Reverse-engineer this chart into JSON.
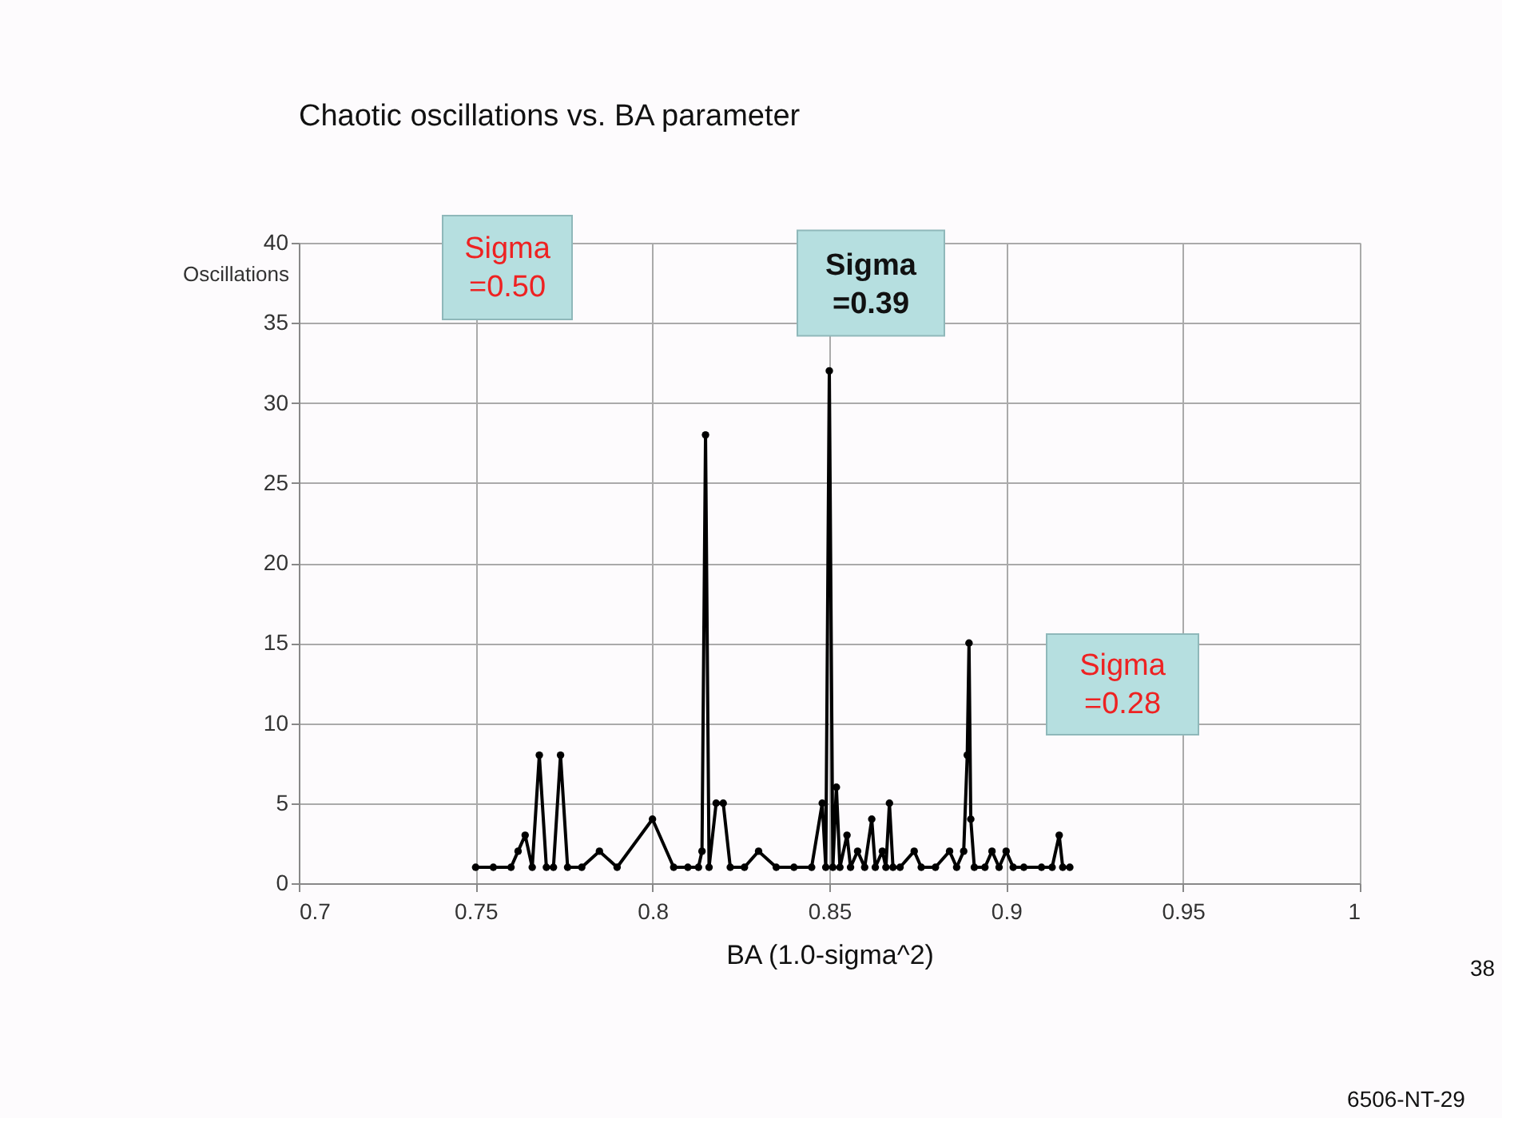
{
  "chart_data": {
    "type": "line",
    "title": "Chaotic oscillations vs. BA parameter",
    "xlabel": "BA (1.0-sigma^2)",
    "ylabel": "Oscillations",
    "x": [
      0.75,
      0.755,
      0.76,
      0.762,
      0.764,
      0.766,
      0.768,
      0.77,
      0.772,
      0.774,
      0.776,
      0.78,
      0.785,
      0.79,
      0.8,
      0.806,
      0.81,
      0.813,
      0.814,
      0.815,
      0.816,
      0.818,
      0.82,
      0.822,
      0.826,
      0.83,
      0.835,
      0.84,
      0.845,
      0.848,
      0.849,
      0.85,
      0.851,
      0.852,
      0.853,
      0.855,
      0.856,
      0.858,
      0.86,
      0.862,
      0.863,
      0.865,
      0.866,
      0.867,
      0.868,
      0.87,
      0.874,
      0.876,
      0.88,
      0.884,
      0.886,
      0.888,
      0.889,
      0.8895,
      0.89,
      0.891,
      0.894,
      0.896,
      0.898,
      0.9,
      0.902,
      0.905,
      0.91,
      0.913,
      0.915,
      0.916,
      0.918
    ],
    "series": [
      {
        "color": "#000000",
        "values": [
          1,
          1,
          1,
          2,
          3,
          1,
          8,
          1,
          1,
          8,
          1,
          1,
          2,
          1,
          4,
          1,
          1,
          1,
          2,
          28,
          1,
          5,
          5,
          1,
          1,
          2,
          1,
          1,
          1,
          5,
          1,
          32,
          1,
          6,
          1,
          3,
          1,
          2,
          1,
          4,
          1,
          2,
          1,
          5,
          1,
          1,
          2,
          1,
          1,
          2,
          1,
          2,
          8,
          15,
          4,
          1,
          1,
          2,
          1,
          2,
          1,
          1,
          1,
          1,
          3,
          1,
          1
        ]
      }
    ],
    "xlim": [
      0.7,
      1
    ],
    "xticks": [
      0.7,
      0.75,
      0.8,
      0.85,
      0.9,
      0.95,
      1
    ],
    "ylim": [
      0,
      40
    ],
    "yticks": [
      0,
      5,
      10,
      15,
      20,
      25,
      30,
      35,
      40
    ],
    "grid": true,
    "marker": "circle",
    "line_style": "solid",
    "annotations": [
      "Sigma\n=0.50",
      {
        "text": "Sigma\n=0.39",
        "x": 0.85,
        "y": 32
      },
      "Sigma\n=0.28",
      "38",
      "6506-NT-29"
    ]
  }
}
